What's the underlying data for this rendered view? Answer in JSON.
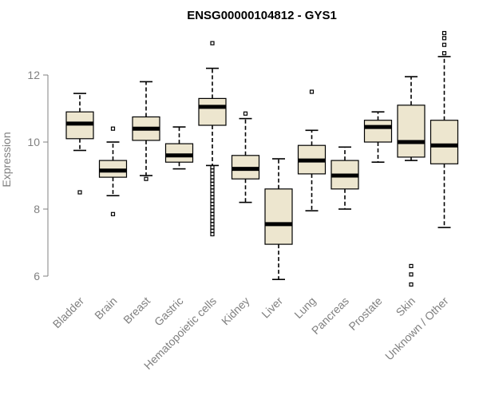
{
  "chart_data": {
    "type": "boxplot",
    "title": "ENSG00000104812 - GYS1",
    "xlabel": "",
    "ylabel": "Expression",
    "ylim": [
      5.4,
      13.6
    ],
    "yticks": [
      6,
      8,
      10,
      12
    ],
    "categories": [
      "Bladder",
      "Brain",
      "Breast",
      "Gastric",
      "Hematopoietic cells",
      "Kidney",
      "Liver",
      "Lung",
      "Pancreas",
      "Prostate",
      "Skin",
      "Unknown / Other"
    ],
    "boxes": [
      {
        "category": "Bladder",
        "whisker_low": 9.75,
        "q1": 10.1,
        "median": 10.55,
        "q3": 10.9,
        "whisker_high": 11.45,
        "outliers": [
          8.5
        ]
      },
      {
        "category": "Brain",
        "whisker_low": 8.4,
        "q1": 8.95,
        "median": 9.15,
        "q3": 9.45,
        "whisker_high": 10.0,
        "outliers": [
          10.4,
          7.85
        ]
      },
      {
        "category": "Breast",
        "whisker_low": 9.0,
        "q1": 10.05,
        "median": 10.4,
        "q3": 10.75,
        "whisker_high": 11.8,
        "outliers": [
          8.9
        ]
      },
      {
        "category": "Gastric",
        "whisker_low": 9.2,
        "q1": 9.4,
        "median": 9.6,
        "q3": 9.95,
        "whisker_high": 10.45,
        "outliers": []
      },
      {
        "category": "Hematopoietic cells",
        "whisker_low": 9.3,
        "q1": 10.5,
        "median": 11.05,
        "q3": 11.3,
        "whisker_high": 12.2,
        "outliers": [
          12.95,
          9.25,
          9.15,
          9.05,
          8.95,
          8.85,
          8.75,
          8.65,
          8.55,
          8.45,
          8.35,
          8.25,
          8.15,
          8.05,
          7.95,
          7.85,
          7.75,
          7.65,
          7.55,
          7.45,
          7.35,
          7.25
        ]
      },
      {
        "category": "Kidney",
        "whisker_low": 8.2,
        "q1": 8.9,
        "median": 9.2,
        "q3": 9.6,
        "whisker_high": 10.7,
        "outliers": [
          10.85
        ]
      },
      {
        "category": "Liver",
        "whisker_low": 5.9,
        "q1": 6.95,
        "median": 7.55,
        "q3": 8.6,
        "whisker_high": 9.5,
        "outliers": []
      },
      {
        "category": "Lung",
        "whisker_low": 7.95,
        "q1": 9.05,
        "median": 9.45,
        "q3": 9.9,
        "whisker_high": 10.35,
        "outliers": [
          11.5
        ]
      },
      {
        "category": "Pancreas",
        "whisker_low": 8.0,
        "q1": 8.6,
        "median": 9.0,
        "q3": 9.45,
        "whisker_high": 9.85,
        "outliers": []
      },
      {
        "category": "Prostate",
        "whisker_low": 9.4,
        "q1": 10.0,
        "median": 10.45,
        "q3": 10.65,
        "whisker_high": 10.9,
        "outliers": []
      },
      {
        "category": "Skin",
        "whisker_low": 9.45,
        "q1": 9.55,
        "median": 10.0,
        "q3": 11.1,
        "whisker_high": 11.95,
        "outliers": [
          6.3,
          6.05,
          5.75
        ]
      },
      {
        "category": "Unknown / Other",
        "whisker_low": 7.45,
        "q1": 9.35,
        "median": 9.9,
        "q3": 10.65,
        "whisker_high": 12.55,
        "outliers": [
          12.65,
          12.9,
          13.1,
          13.25
        ]
      }
    ],
    "colors": {
      "box_fill": "#ede6cf",
      "box_stroke": "#000000",
      "axis": "#808080"
    }
  }
}
